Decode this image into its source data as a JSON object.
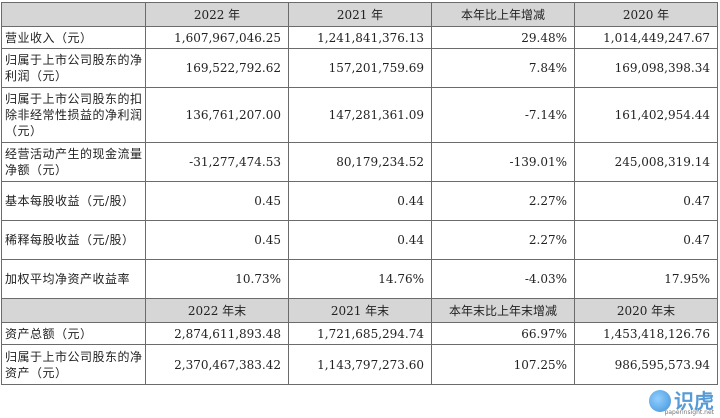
{
  "headers1": [
    "",
    "2022 年",
    "2021 年",
    "本年比上年增减",
    "2020 年"
  ],
  "rows1": [
    {
      "label": "营业收入（元）",
      "v": [
        "1,607,967,046.25",
        "1,241,841,376.13",
        "29.48%",
        "1,014,449,247.67"
      ]
    },
    {
      "label": "归属于上市公司股东的净利润（元）",
      "v": [
        "169,522,792.62",
        "157,201,759.69",
        "7.84%",
        "169,098,398.34"
      ]
    },
    {
      "label": "归属于上市公司股东的扣除非经常性损益的净利润（元）",
      "v": [
        "136,761,207.00",
        "147,281,361.09",
        "-7.14%",
        "161,402,954.44"
      ]
    },
    {
      "label": "经营活动产生的现金流量净额（元）",
      "v": [
        "-31,277,474.53",
        "80,179,234.52",
        "-139.01%",
        "245,008,319.14"
      ]
    },
    {
      "label": "基本每股收益（元/股）",
      "v": [
        "0.45",
        "0.44",
        "2.27%",
        "0.47"
      ]
    },
    {
      "label": "稀释每股收益（元/股）",
      "v": [
        "0.45",
        "0.44",
        "2.27%",
        "0.47"
      ]
    },
    {
      "label": "加权平均净资产收益率",
      "v": [
        "10.73%",
        "14.76%",
        "-4.03%",
        "17.95%"
      ]
    }
  ],
  "headers2": [
    "",
    "2022 年末",
    "2021 年末",
    "本年末比上年末增减",
    "2020 年末"
  ],
  "rows2": [
    {
      "label": "资产总额（元）",
      "v": [
        "2,874,611,893.48",
        "1,721,685,294.74",
        "66.97%",
        "1,453,418,126.76"
      ]
    },
    {
      "label": "归属于上市公司股东的净资产（元）",
      "v": [
        "2,370,467,383.42",
        "1,143,797,273.60",
        "107.25%",
        "986,595,573.94"
      ]
    }
  ],
  "watermark": {
    "brand": "识虎",
    "site": "paperinsight.net",
    "icon": "tiger-logo-icon"
  }
}
